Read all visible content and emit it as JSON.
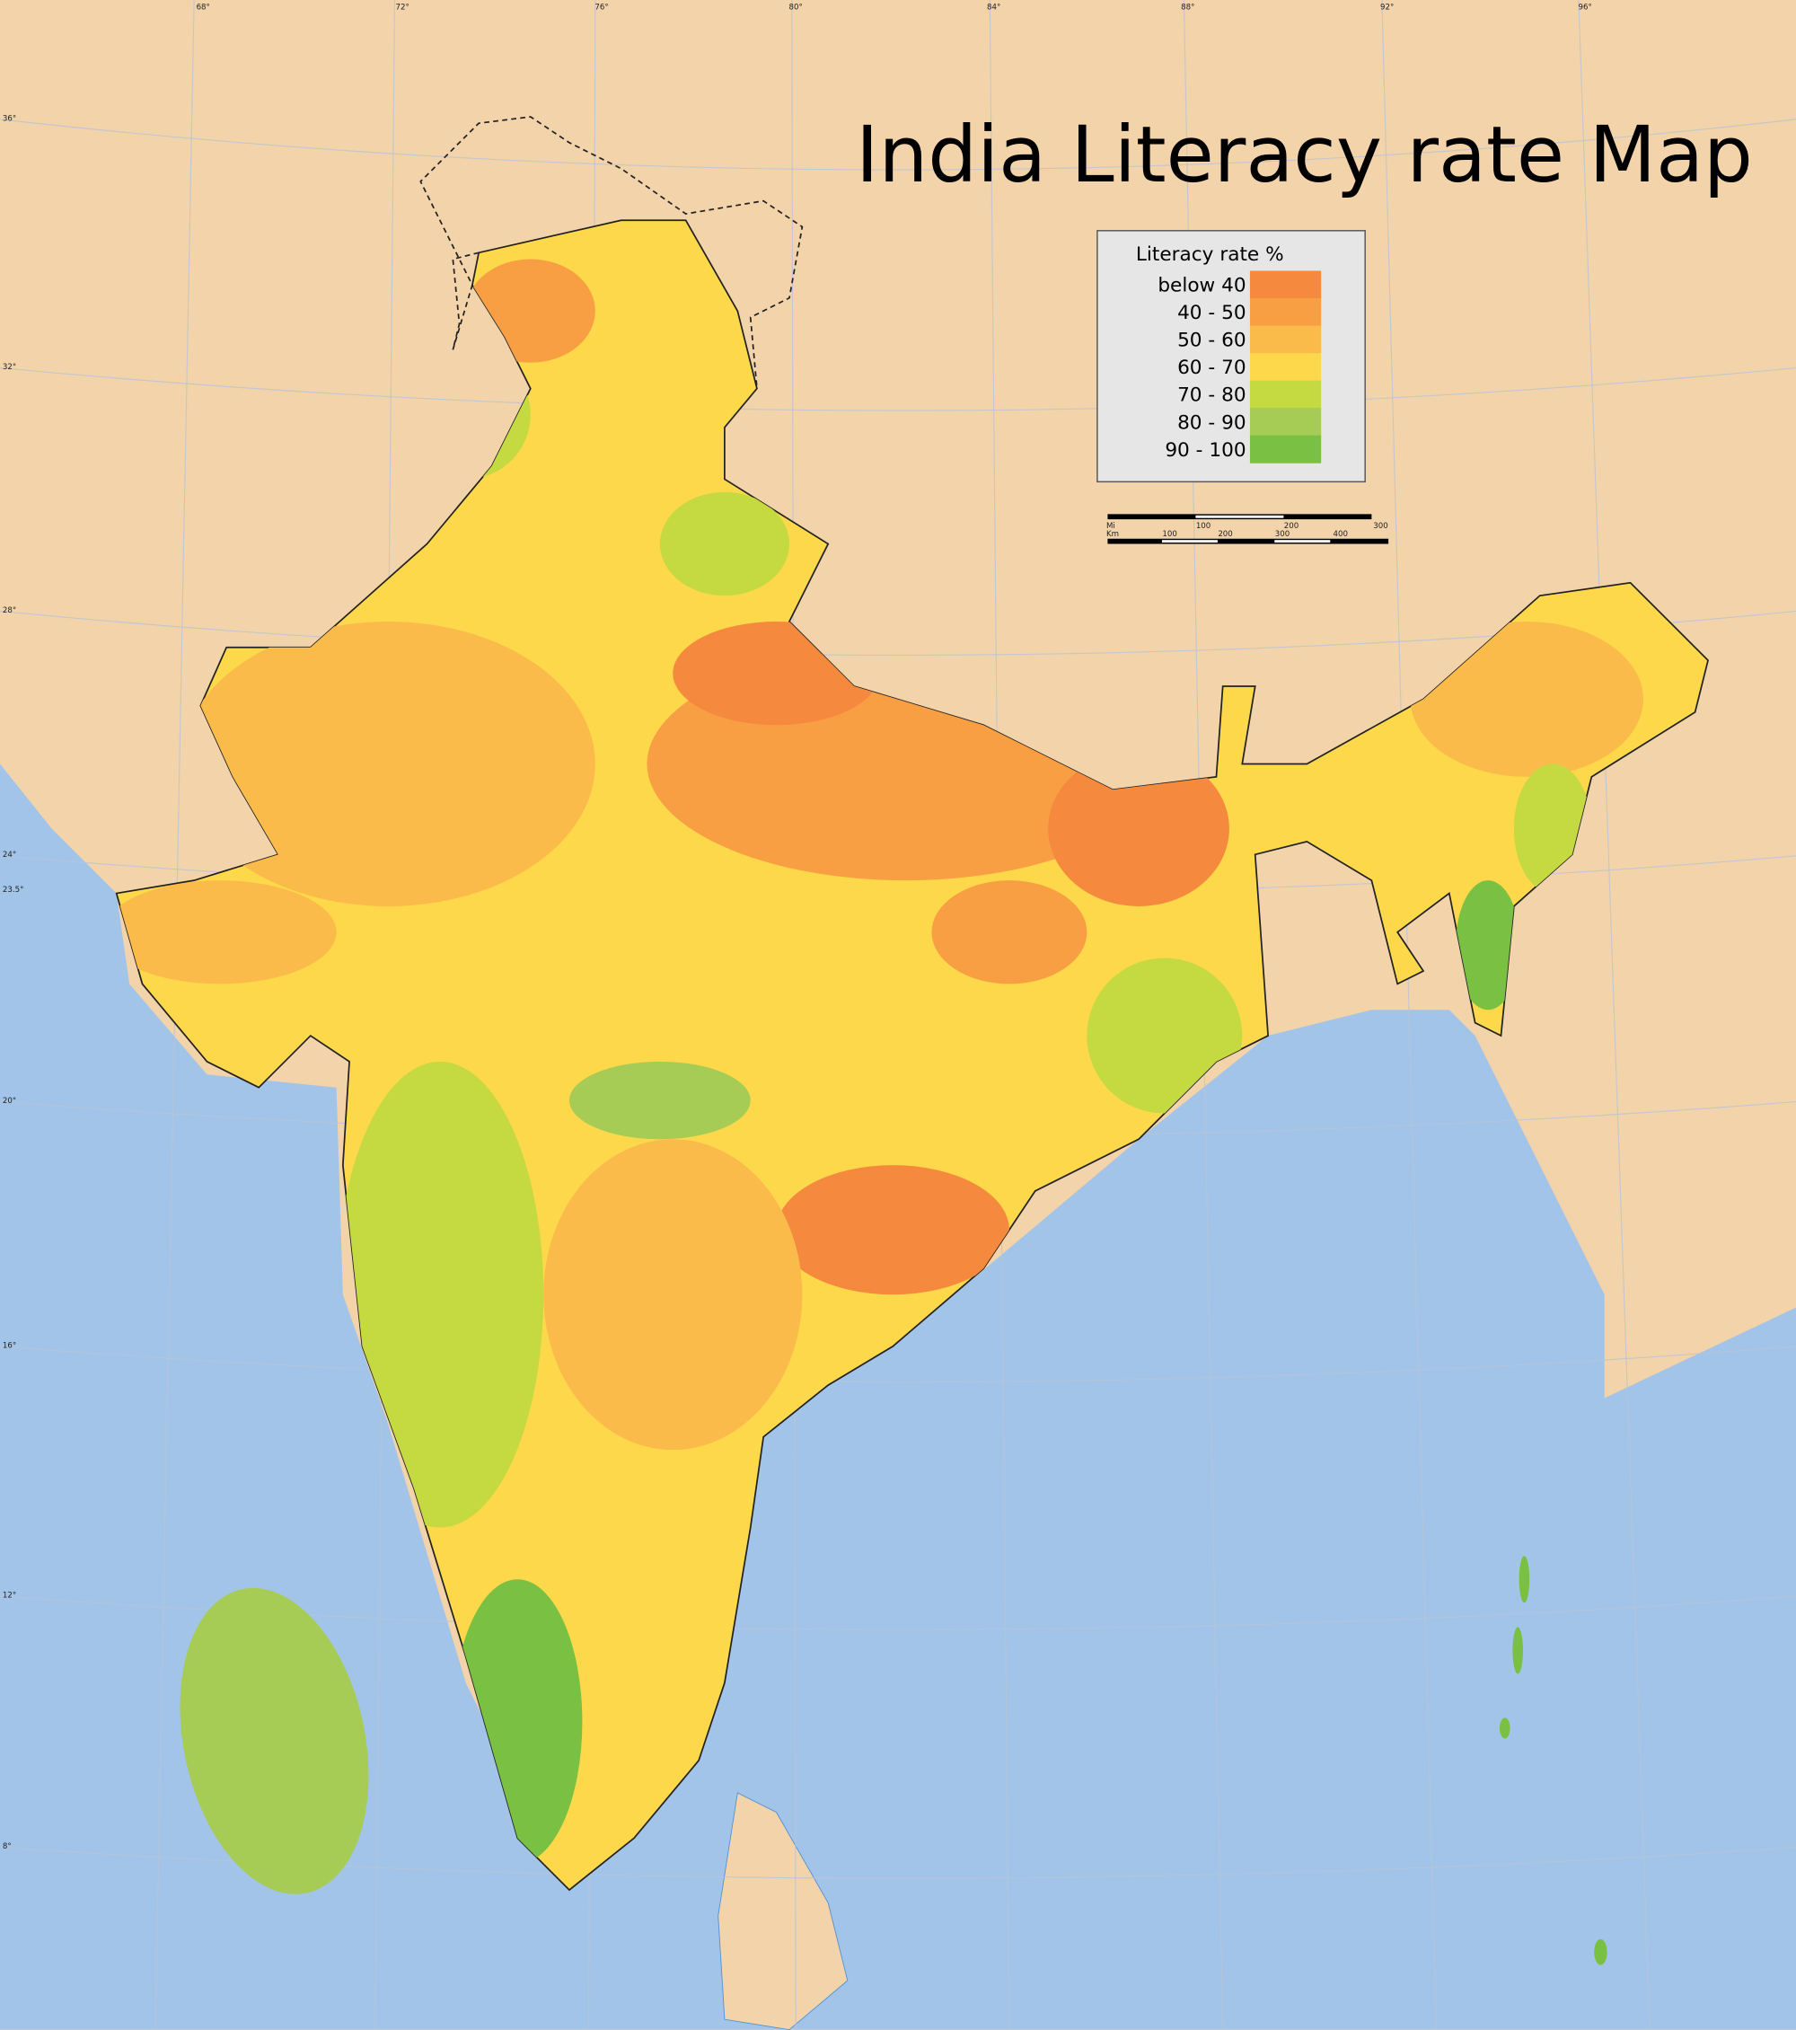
{
  "title": "India Literacy rate Map",
  "legend": {
    "title": "Literacy rate %",
    "items": [
      {
        "label": "below 40",
        "color": "#f58a3e"
      },
      {
        "label": "40 - 50",
        "color": "#f99f43"
      },
      {
        "label": "50 - 60",
        "color": "#fbbb4a"
      },
      {
        "label": "60 - 70",
        "color": "#fdd84a"
      },
      {
        "label": "70 - 80",
        "color": "#c5d940"
      },
      {
        "label": "80 - 90",
        "color": "#a6cc55"
      },
      {
        "label": "90 - 100",
        "color": "#79c043"
      }
    ]
  },
  "graticule": {
    "longitudes": [
      "68°",
      "72°",
      "76°",
      "80°",
      "84°",
      "88°",
      "92°",
      "96°"
    ],
    "latitudes": [
      "36°",
      "32°",
      "28°",
      "24°",
      "23.5°",
      "20°",
      "16°",
      "12°",
      "8°"
    ]
  },
  "scale_bar": {
    "miles_unit": "Mi",
    "miles_ticks": [
      "100",
      "200",
      "300"
    ],
    "km_unit": "Km",
    "km_ticks": [
      "100",
      "200",
      "300",
      "400"
    ]
  }
}
